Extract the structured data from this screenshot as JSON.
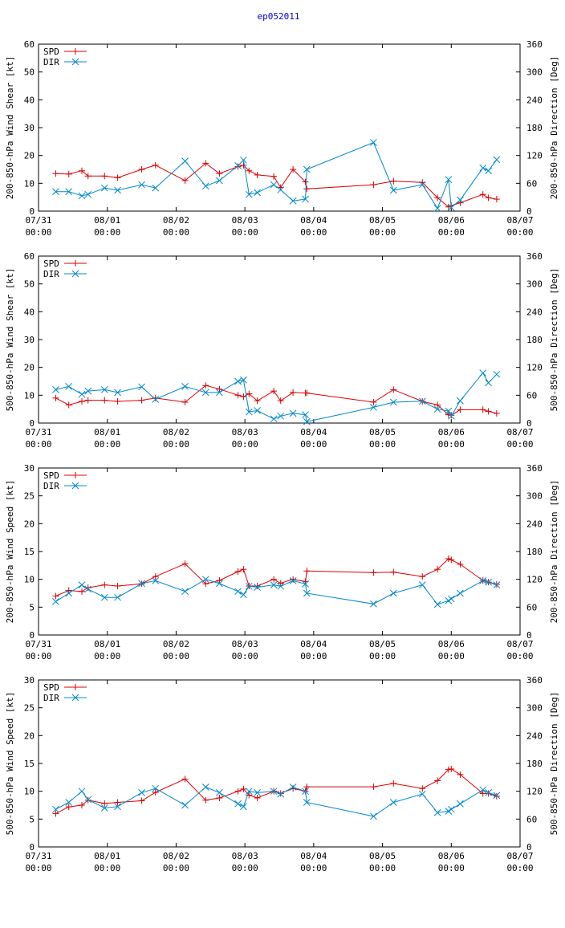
{
  "title": "ep052011",
  "colors": {
    "spd": "#dd0000",
    "dir": "#0088cc",
    "frame": "#000000",
    "title": "#0000cc"
  },
  "x_ticks": [
    {
      "date": "07/31",
      "time": "00:00"
    },
    {
      "date": "08/01",
      "time": "00:00"
    },
    {
      "date": "08/02",
      "time": "00:00"
    },
    {
      "date": "08/03",
      "time": "00:00"
    },
    {
      "date": "08/04",
      "time": "00:00"
    },
    {
      "date": "08/05",
      "time": "00:00"
    },
    {
      "date": "08/06",
      "time": "00:00"
    },
    {
      "date": "08/07",
      "time": "00:00"
    }
  ],
  "chart_data": [
    {
      "type": "line",
      "ylabel": "200-850-hPa Wind Shear [kt]",
      "y2label": "200-850-hPa Direction [Deg]",
      "xlim": [
        0,
        7
      ],
      "ylim": [
        0,
        60
      ],
      "yticks": [
        0,
        10,
        20,
        30,
        40,
        50,
        60
      ],
      "y2lim": [
        0,
        360
      ],
      "y2ticks": [
        0,
        60,
        120,
        180,
        240,
        300,
        360
      ],
      "legend": [
        "SPD",
        "DIR"
      ],
      "series": [
        {
          "name": "SPD",
          "axis": "left",
          "marker": "plus",
          "x": [
            0.25,
            0.44,
            0.63,
            0.72,
            0.96,
            1.15,
            1.5,
            1.7,
            2.13,
            2.43,
            2.63,
            2.9,
            2.98,
            3.06,
            3.18,
            3.42,
            3.52,
            3.7,
            3.88,
            3.9,
            4.87,
            5.16,
            5.58,
            5.8,
            5.96,
            6.0,
            6.13,
            6.46,
            6.54,
            6.66
          ],
          "y": [
            13.5,
            13.3,
            14.5,
            12.6,
            12.6,
            12.0,
            15,
            16.5,
            11,
            17.2,
            13.5,
            16,
            16.5,
            14.5,
            13,
            12.5,
            8.5,
            15,
            10.5,
            8,
            9.5,
            10.8,
            10.3,
            4.8,
            1.5,
            2,
            3,
            6,
            4.8,
            4.3
          ]
        },
        {
          "name": "DIR",
          "axis": "right",
          "marker": "x",
          "x": [
            0.25,
            0.44,
            0.63,
            0.72,
            0.96,
            1.15,
            1.5,
            1.7,
            2.13,
            2.43,
            2.63,
            2.9,
            2.98,
            3.06,
            3.18,
            3.42,
            3.52,
            3.7,
            3.88,
            3.9,
            4.87,
            5.16,
            5.58,
            5.8,
            5.96,
            6.0,
            6.13,
            6.46,
            6.54,
            6.66
          ],
          "y": [
            42,
            42,
            33,
            36,
            50,
            45,
            57,
            50,
            108,
            54,
            66,
            98,
            110,
            36,
            40,
            57,
            46,
            22,
            26,
            90,
            148,
            45,
            57,
            6,
            68,
            8,
            24,
            93,
            87,
            111
          ]
        }
      ]
    },
    {
      "type": "line",
      "ylabel": "500-850-hPa Wind Shear [kt]",
      "y2label": "500-850-hPa Direction [Deg]",
      "xlim": [
        0,
        7
      ],
      "ylim": [
        0,
        60
      ],
      "yticks": [
        0,
        10,
        20,
        30,
        40,
        50,
        60
      ],
      "y2lim": [
        0,
        360
      ],
      "y2ticks": [
        0,
        60,
        120,
        180,
        240,
        300,
        360
      ],
      "legend": [
        "SPD",
        "DIR"
      ],
      "series": [
        {
          "name": "SPD",
          "axis": "left",
          "marker": "plus",
          "x": [
            0.25,
            0.44,
            0.63,
            0.72,
            0.96,
            1.15,
            1.5,
            1.7,
            2.13,
            2.43,
            2.63,
            2.9,
            2.98,
            3.06,
            3.18,
            3.42,
            3.52,
            3.7,
            3.88,
            3.9,
            4.87,
            5.16,
            5.58,
            5.8,
            5.96,
            6.0,
            6.13,
            6.46,
            6.54,
            6.66
          ],
          "y": [
            9,
            6.5,
            7.8,
            8.2,
            8.2,
            7.8,
            8.2,
            9,
            7.5,
            13.5,
            12.2,
            10,
            9.5,
            10.5,
            8,
            11.5,
            8,
            11,
            10.8,
            10.8,
            7.5,
            12,
            7.8,
            6.5,
            3,
            2.8,
            4.8,
            4.8,
            4.2,
            3.5
          ]
        },
        {
          "name": "DIR",
          "axis": "right",
          "marker": "x",
          "x": [
            0.25,
            0.44,
            0.63,
            0.72,
            0.96,
            1.15,
            1.5,
            1.7,
            2.13,
            2.43,
            2.63,
            2.9,
            2.98,
            3.06,
            3.18,
            3.42,
            3.52,
            3.7,
            3.88,
            3.9,
            4.87,
            5.16,
            5.58,
            5.8,
            5.96,
            6.0,
            6.13,
            6.46,
            6.54,
            6.66
          ],
          "y": [
            72,
            79,
            62,
            69,
            72,
            66,
            78,
            51,
            79,
            66,
            66,
            90,
            93,
            24,
            27,
            9,
            15,
            21,
            18,
            3,
            34,
            45,
            47,
            30,
            26,
            15,
            48,
            108,
            87,
            105
          ]
        }
      ]
    },
    {
      "type": "line",
      "ylabel": "200-850-hPa Wind Speed [kt]",
      "y2label": "200-850-hPa Direction [Deg]",
      "xlim": [
        0,
        7
      ],
      "ylim": [
        0,
        30
      ],
      "yticks": [
        0,
        5,
        10,
        15,
        20,
        25,
        30
      ],
      "y2lim": [
        0,
        360
      ],
      "y2ticks": [
        0,
        60,
        120,
        180,
        240,
        300,
        360
      ],
      "legend": [
        "SPD",
        "DIR"
      ],
      "series": [
        {
          "name": "SPD",
          "axis": "left",
          "marker": "plus",
          "x": [
            0.25,
            0.44,
            0.63,
            0.72,
            0.96,
            1.15,
            1.5,
            1.7,
            2.13,
            2.43,
            2.63,
            2.9,
            2.98,
            3.06,
            3.18,
            3.42,
            3.52,
            3.7,
            3.88,
            3.9,
            4.87,
            5.16,
            5.58,
            5.8,
            5.96,
            6.0,
            6.13,
            6.46,
            6.54,
            6.66
          ],
          "y": [
            7,
            8,
            7.8,
            8.5,
            9,
            8.8,
            9.2,
            10.5,
            12.8,
            9.2,
            9.8,
            11.4,
            11.8,
            8.8,
            8.8,
            10,
            9.3,
            10,
            9.6,
            11.5,
            11.2,
            11.3,
            10.5,
            11.8,
            13.7,
            13.5,
            12.7,
            9.8,
            9.5,
            9.1
          ]
        },
        {
          "name": "DIR",
          "axis": "right",
          "marker": "x",
          "x": [
            0.25,
            0.44,
            0.63,
            0.72,
            0.96,
            1.15,
            1.5,
            1.7,
            2.13,
            2.43,
            2.63,
            2.9,
            2.98,
            3.06,
            3.18,
            3.42,
            3.52,
            3.7,
            3.88,
            3.9,
            4.87,
            5.16,
            5.58,
            5.8,
            5.96,
            6.0,
            6.13,
            6.46,
            6.54,
            6.66
          ],
          "y": [
            72,
            90,
            108,
            99,
            81,
            81,
            111,
            117,
            94,
            120,
            111,
            94,
            87,
            105,
            103,
            108,
            105,
            117,
            110,
            90,
            67,
            90,
            108,
            66,
            74,
            78,
            90,
            117,
            114,
            108
          ]
        }
      ]
    },
    {
      "type": "line",
      "ylabel": "500-850-hPa Wind Speed [kt]",
      "y2label": "500-850-hPa Direction [Deg]",
      "xlim": [
        0,
        7
      ],
      "ylim": [
        0,
        30
      ],
      "yticks": [
        0,
        5,
        10,
        15,
        20,
        25,
        30
      ],
      "y2lim": [
        0,
        360
      ],
      "y2ticks": [
        0,
        60,
        120,
        180,
        240,
        300,
        360
      ],
      "legend": [
        "SPD",
        "DIR"
      ],
      "series": [
        {
          "name": "SPD",
          "axis": "left",
          "marker": "plus",
          "x": [
            0.25,
            0.44,
            0.63,
            0.72,
            0.96,
            1.15,
            1.5,
            1.7,
            2.13,
            2.43,
            2.63,
            2.9,
            2.98,
            3.06,
            3.18,
            3.42,
            3.52,
            3.7,
            3.88,
            3.9,
            4.87,
            5.16,
            5.58,
            5.8,
            5.96,
            6.0,
            6.13,
            6.46,
            6.54,
            6.66
          ],
          "y": [
            6,
            7.2,
            7.5,
            8.4,
            7.8,
            8,
            8.3,
            9.8,
            12.2,
            8.4,
            8.8,
            10,
            10.4,
            9.3,
            8.8,
            10,
            9.6,
            10.5,
            10,
            10.8,
            10.8,
            11.4,
            10.5,
            11.9,
            13.9,
            14,
            13,
            9.6,
            9.6,
            9.1
          ]
        },
        {
          "name": "DIR",
          "axis": "right",
          "marker": "x",
          "x": [
            0.25,
            0.44,
            0.63,
            0.72,
            0.96,
            1.15,
            1.5,
            1.7,
            2.13,
            2.43,
            2.63,
            2.9,
            2.98,
            3.06,
            3.18,
            3.42,
            3.52,
            3.7,
            3.88,
            3.9,
            4.87,
            5.16,
            5.58,
            5.8,
            5.96,
            6.0,
            6.13,
            6.46,
            6.54,
            6.66
          ],
          "y": [
            81,
            96,
            120,
            102,
            84,
            87,
            117,
            126,
            90,
            129,
            117,
            93,
            87,
            120,
            117,
            120,
            114,
            129,
            120,
            96,
            66,
            96,
            114,
            74,
            77,
            81,
            93,
            123,
            117,
            111
          ]
        }
      ]
    }
  ]
}
